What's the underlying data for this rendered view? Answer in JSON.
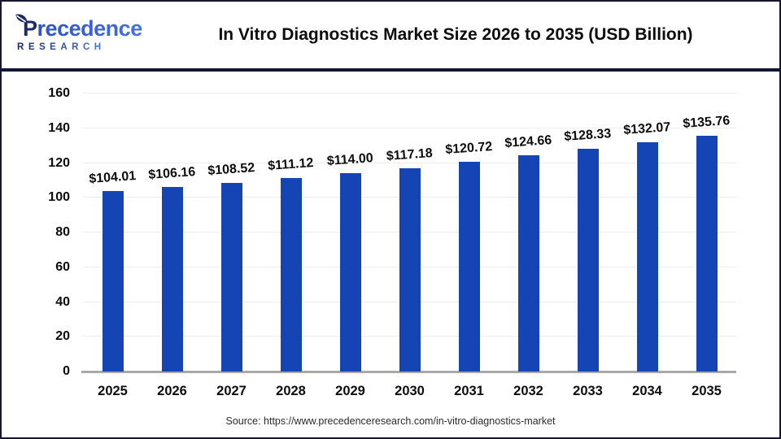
{
  "header": {
    "logo": {
      "line1": "Precedence",
      "line2": "RESEARCH"
    },
    "title": "In Vitro Diagnostics Market Size 2026 to 2035 (USD Billion)"
  },
  "chart_data": {
    "type": "bar",
    "title": "In Vitro Diagnostics Market Size 2026 to 2035 (USD Billion)",
    "categories": [
      "2025",
      "2026",
      "2027",
      "2028",
      "2029",
      "2030",
      "2031",
      "2032",
      "2033",
      "2034",
      "2035"
    ],
    "values": [
      104.01,
      106.16,
      108.52,
      111.12,
      114.0,
      117.18,
      120.72,
      124.66,
      128.33,
      132.07,
      135.76
    ],
    "value_labels": [
      "$104.01",
      "$106.16",
      "$108.52",
      "$111.12",
      "$114.00",
      "$117.18",
      "$120.72",
      "$124.66",
      "$128.33",
      "$132.07",
      "$135.76"
    ],
    "xlabel": "",
    "ylabel": "",
    "ylim": [
      0,
      160
    ],
    "yticks": [
      0,
      20,
      40,
      60,
      80,
      100,
      120,
      140,
      160
    ],
    "grid": true,
    "legend": "none",
    "bar_color": "#1545b5"
  },
  "footer": {
    "source": "Source: https://www.precedenceresearch.com/in-vitro-diagnostics-market"
  },
  "colors": {
    "logo_dark": "#1c2c63",
    "logo_blue_start": "#2b4ec9",
    "logo_blue_end": "#4470de",
    "divider": "#141433",
    "frame_border": "#15152f",
    "gridline": "#ededed",
    "axis_line": "#a8a8a8"
  }
}
